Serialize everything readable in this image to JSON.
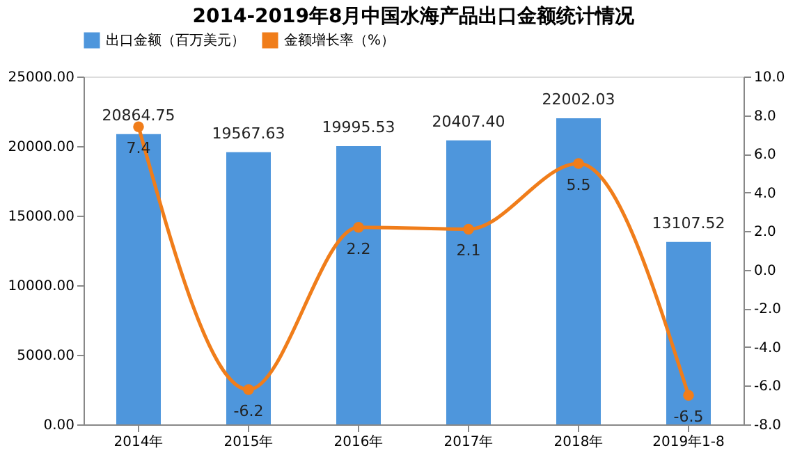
{
  "chart_data": {
    "type": "bar",
    "title": "2014-2019年8月中国水海产品出口金额统计情况",
    "categories": [
      "2014年",
      "2015年",
      "2016年",
      "2017年",
      "2018年",
      "2019年1-8"
    ],
    "series": [
      {
        "name": "出口金额（百万美元）",
        "color": "#4e96dc",
        "values": [
          20864.75,
          19567.63,
          19995.53,
          20407.4,
          22002.03,
          13107.52
        ],
        "value_labels": [
          "20864.75",
          "19567.63",
          "19995.53",
          "20407.40",
          "22002.03",
          "13107.52"
        ]
      },
      {
        "name": "金额增长率（%）",
        "type": "line",
        "axis": "y2",
        "color": "#f07d1a",
        "marker": "circle",
        "values": [
          7.4,
          -6.2,
          2.2,
          2.1,
          5.5,
          -6.5
        ]
      }
    ],
    "data_labels": true,
    "ylim": [
      0,
      25000
    ],
    "yticks": [
      {
        "value": 0,
        "label": "0.00"
      },
      {
        "value": 5000,
        "label": "5000.00"
      },
      {
        "value": 10000,
        "label": "10000.00"
      },
      {
        "value": 15000,
        "label": "15000.00"
      },
      {
        "value": 20000,
        "label": "20000.00"
      },
      {
        "value": 25000,
        "label": "25000.00"
      }
    ],
    "y2lim": [
      -8,
      10
    ],
    "y2ticks": [
      {
        "value": -8,
        "label": "-8.0"
      },
      {
        "value": -6,
        "label": "-6.0"
      },
      {
        "value": -4,
        "label": "-4.0"
      },
      {
        "value": -2,
        "label": "-2.0"
      },
      {
        "value": 0,
        "label": "0.0"
      },
      {
        "value": 2,
        "label": "2.0"
      },
      {
        "value": 4,
        "label": "4.0"
      },
      {
        "value": 6,
        "label": "6.0"
      },
      {
        "value": 8,
        "label": "8.0"
      },
      {
        "value": 10,
        "label": "10.0"
      }
    ],
    "legend": "top",
    "grid": false
  }
}
